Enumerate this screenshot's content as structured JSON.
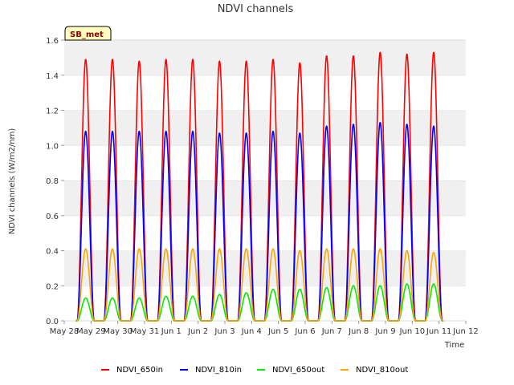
{
  "chart_data": {
    "type": "line",
    "title": "NDVI channels",
    "xlabel": "Time",
    "ylabel": "NDVI channels (W/m2/nm)",
    "ylim": [
      0,
      1.6
    ],
    "yticks": [
      0.0,
      0.2,
      0.4,
      0.6,
      0.8,
      1.0,
      1.2,
      1.4,
      1.6
    ],
    "ytick_labels": [
      "0.0",
      "0.2",
      "0.4",
      "0.6",
      "0.8",
      "1.0",
      "1.2",
      "1.4",
      "1.6"
    ],
    "xlim_days": [
      0,
      15
    ],
    "xtick_labels": [
      "May 28",
      "May 29",
      "May 30",
      "May 31",
      "Jun 1",
      "Jun 2",
      "Jun 3",
      "Jun 4",
      "Jun 5",
      "Jun 6",
      "Jun 7",
      "Jun 8",
      "Jun 9",
      "Jun 10",
      "Jun 11",
      "Jun 12"
    ],
    "grid": "horizontal bands",
    "site_label": "SB_met",
    "legend_position": "bottom",
    "peak_days": [
      0.8,
      1.8,
      2.8,
      3.8,
      4.8,
      5.8,
      6.8,
      7.8,
      8.8,
      9.8,
      10.8,
      11.8,
      12.8,
      13.8
    ],
    "daylight_halfwidth_days": 0.32,
    "series": [
      {
        "name": "NDVI_650in",
        "color": "#ff0000",
        "peaks": [
          1.49,
          1.49,
          1.48,
          1.49,
          1.49,
          1.48,
          1.48,
          1.49,
          1.47,
          1.51,
          1.51,
          1.53,
          1.52,
          1.53
        ]
      },
      {
        "name": "NDVI_810in",
        "color": "#0000ff",
        "peaks": [
          1.08,
          1.08,
          1.08,
          1.08,
          1.08,
          1.07,
          1.07,
          1.08,
          1.07,
          1.11,
          1.12,
          1.13,
          1.12,
          1.11
        ]
      },
      {
        "name": "NDVI_650out",
        "color": "#00ee00",
        "peaks": [
          0.13,
          0.13,
          0.13,
          0.14,
          0.14,
          0.15,
          0.16,
          0.18,
          0.18,
          0.19,
          0.2,
          0.2,
          0.21,
          0.21
        ]
      },
      {
        "name": "NDVI_810out",
        "color": "#ffa500",
        "peaks": [
          0.41,
          0.41,
          0.41,
          0.41,
          0.41,
          0.41,
          0.41,
          0.41,
          0.4,
          0.41,
          0.41,
          0.41,
          0.4,
          0.39
        ]
      }
    ]
  }
}
